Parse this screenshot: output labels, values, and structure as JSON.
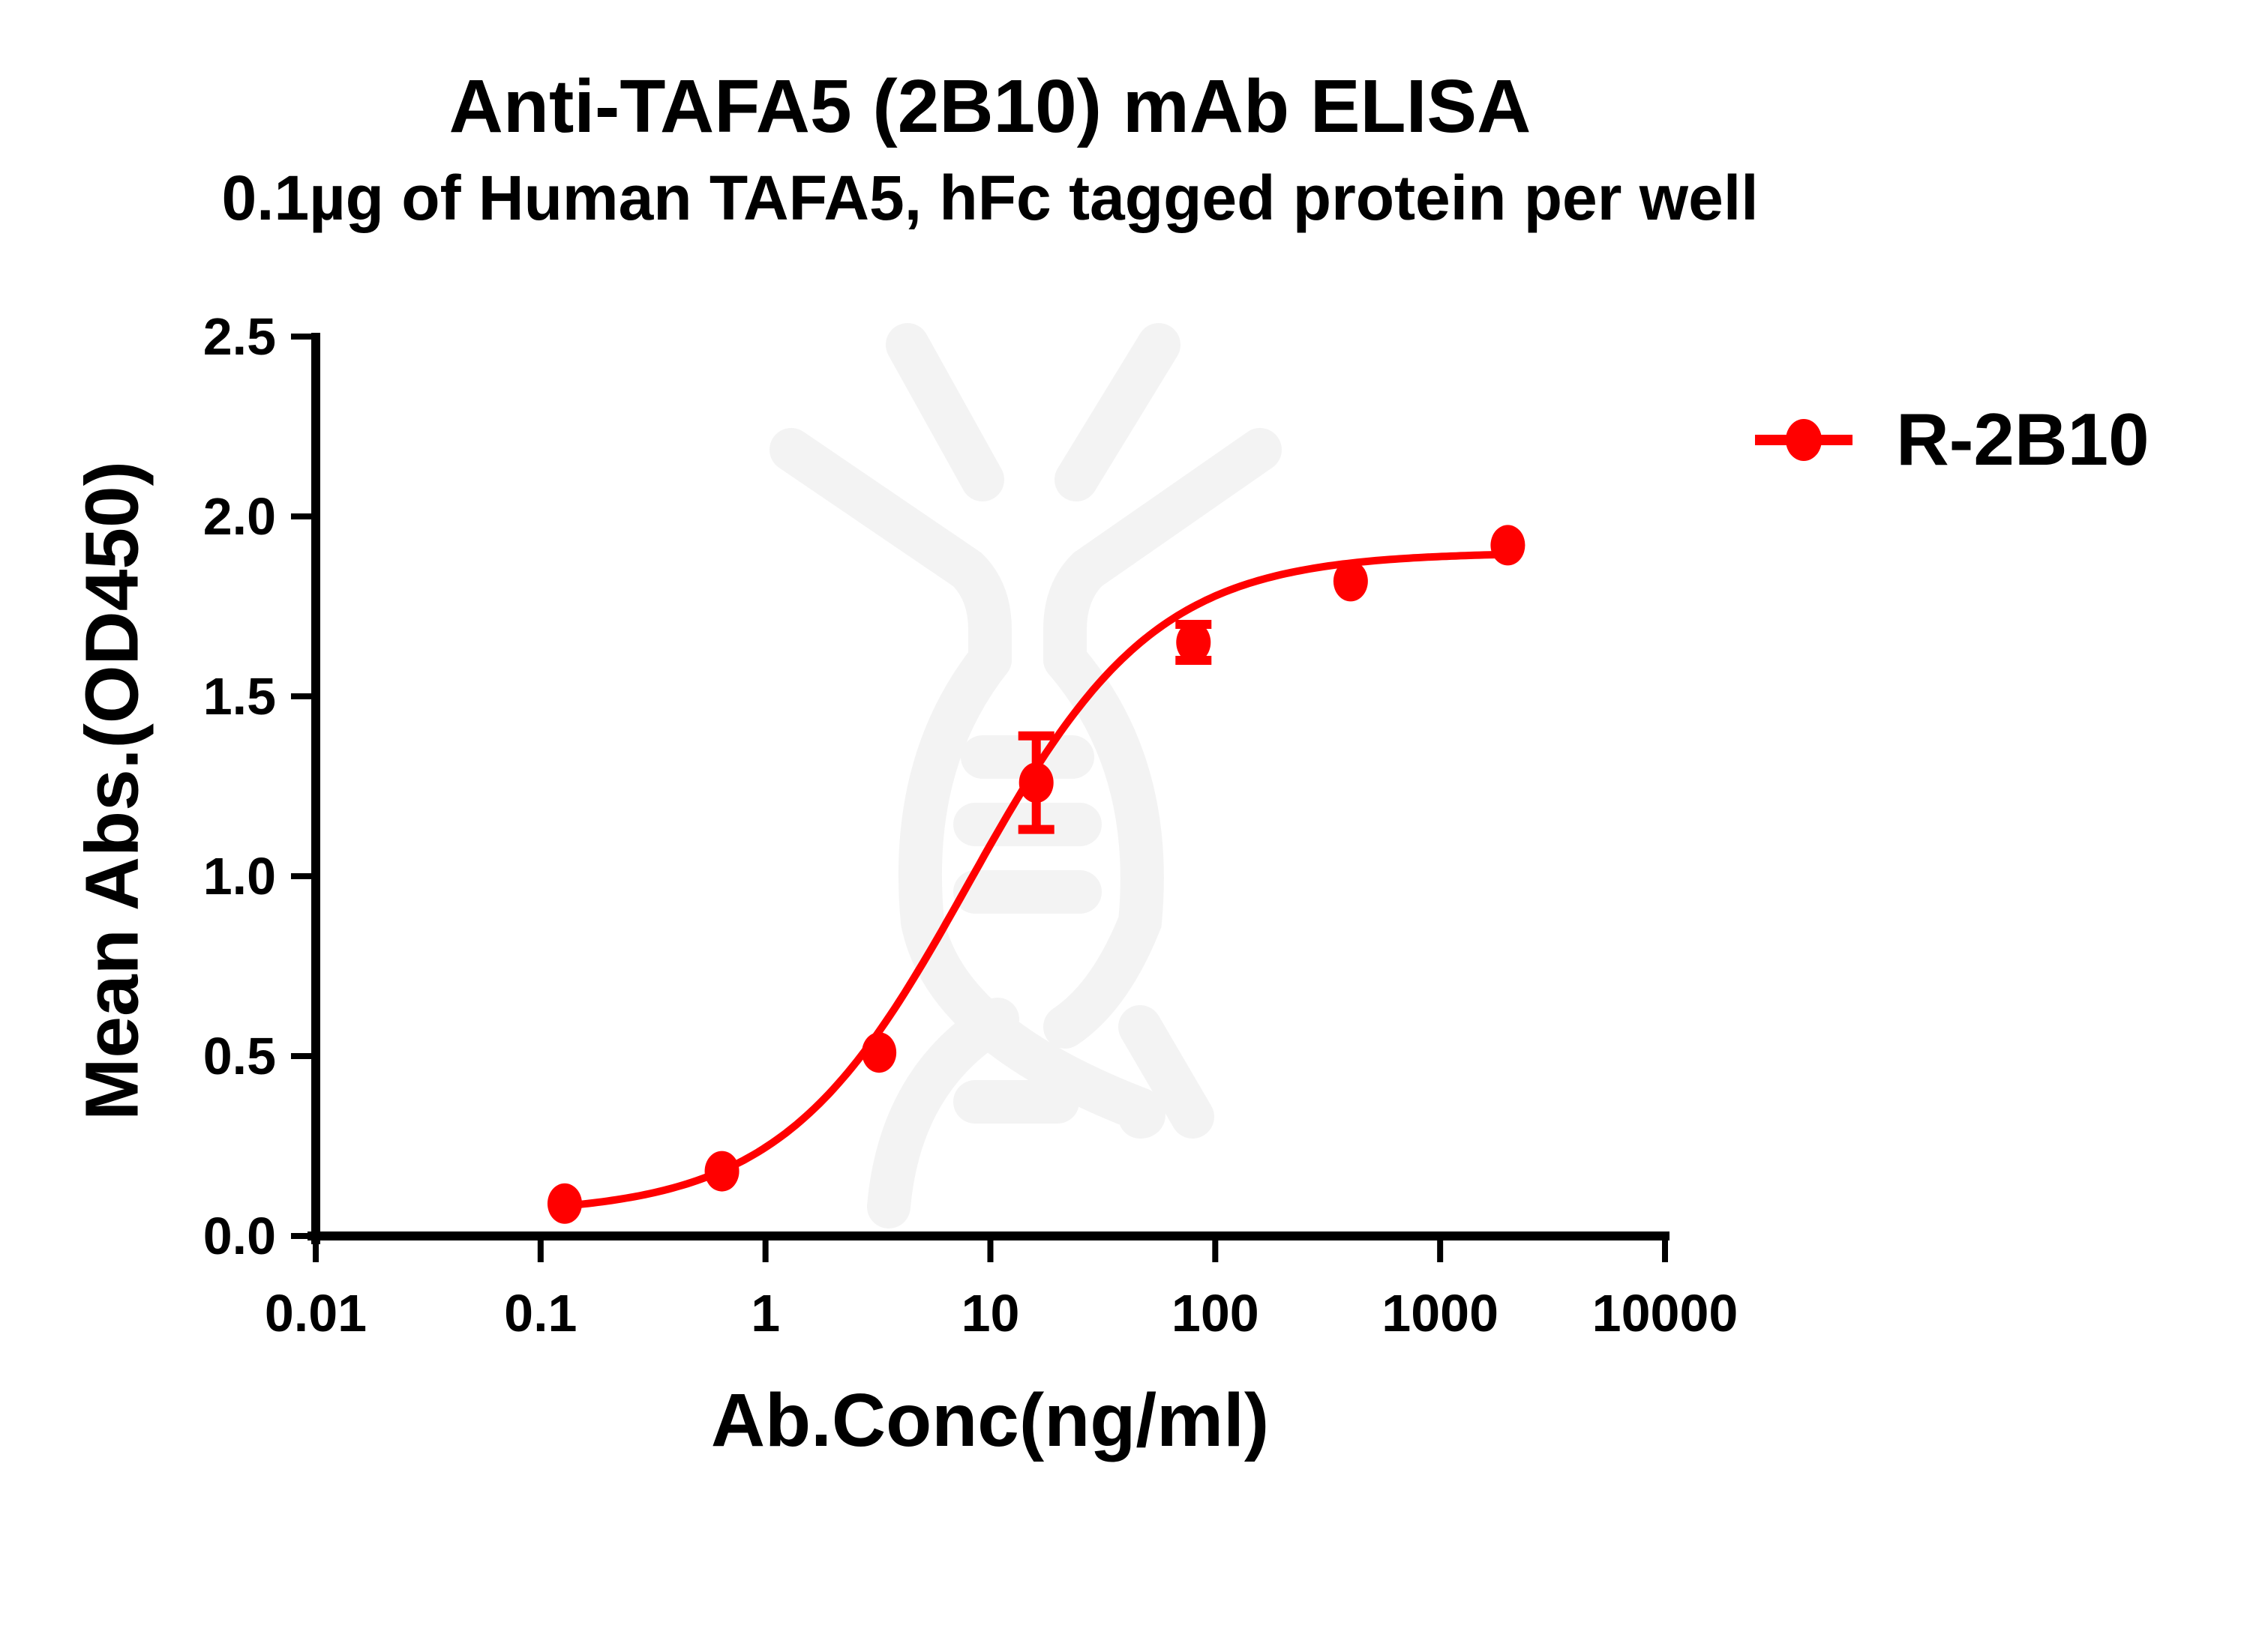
{
  "chart_data": {
    "type": "scatter",
    "title": "Anti-TAFA5 (2B10) mAb ELISA",
    "subtitle": "0.1µg of Human TAFA5, hFc tagged protein per well",
    "xlabel": "Ab.Conc(ng/ml)",
    "ylabel": "Mean Abs.(OD450)",
    "xscale": "log",
    "xlim": [
      0.01,
      10000
    ],
    "ylim": [
      0,
      2.5
    ],
    "x_ticks": [
      "0.01",
      "0.1",
      "1",
      "10",
      "100",
      "1000",
      "10000"
    ],
    "y_ticks": [
      "0.0",
      "0.5",
      "1.0",
      "1.5",
      "2.0",
      "2.5"
    ],
    "grid": false,
    "legend_position": "right",
    "fit": "four-parameter logistic curve",
    "series": [
      {
        "name": "R-2B10",
        "color": "#ff0000",
        "marker": "circle",
        "x": [
          0.128,
          0.64,
          3.2,
          16,
          80,
          400,
          2000
        ],
        "values": [
          0.09,
          0.18,
          0.51,
          1.26,
          1.65,
          1.82,
          1.92
        ],
        "error": [
          0.0,
          0.0,
          0.0,
          0.13,
          0.05,
          0.0,
          0.0
        ]
      }
    ]
  },
  "legend": {
    "items": [
      {
        "label": "R-2B10",
        "color": "#ff0000"
      }
    ]
  }
}
